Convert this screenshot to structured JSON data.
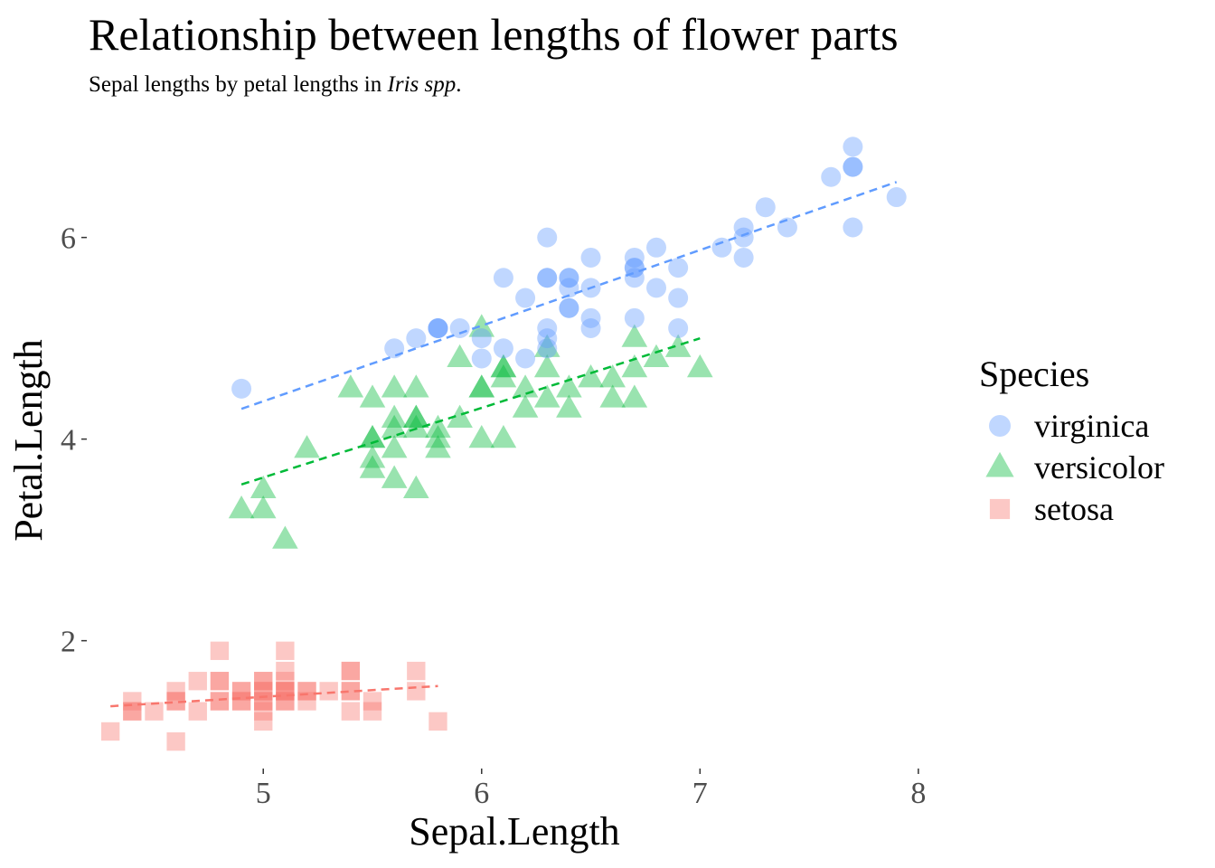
{
  "chart_data": {
    "type": "scatter",
    "title": "Relationship between lengths of flower parts",
    "subtitle_prefix": "Sepal lengths by petal lengths in ",
    "subtitle_italic": "Iris spp",
    "subtitle_suffix": ".",
    "xlabel": "Sepal.Length",
    "ylabel": "Petal.Length",
    "xlim": [
      4.2,
      8.1
    ],
    "ylim": [
      0.75,
      7.1
    ],
    "xticks": [
      5,
      6,
      7,
      8
    ],
    "yticks": [
      2,
      4,
      6
    ],
    "grid": false,
    "legend": {
      "title": "Species",
      "position": "right",
      "order": [
        "virginica",
        "versicolor",
        "setosa"
      ]
    },
    "series": [
      {
        "name": "setosa",
        "color": "#F8766D",
        "shape": "square",
        "trend": {
          "x": [
            4.3,
            5.8
          ],
          "y": [
            1.35,
            1.55
          ]
        },
        "points": [
          [
            4.3,
            1.1
          ],
          [
            4.4,
            1.4
          ],
          [
            4.4,
            1.3
          ],
          [
            4.4,
            1.3
          ],
          [
            4.5,
            1.3
          ],
          [
            4.6,
            1.4
          ],
          [
            4.6,
            1.5
          ],
          [
            4.6,
            1.0
          ],
          [
            4.6,
            1.4
          ],
          [
            4.7,
            1.3
          ],
          [
            4.7,
            1.6
          ],
          [
            4.8,
            1.6
          ],
          [
            4.8,
            1.4
          ],
          [
            4.8,
            1.4
          ],
          [
            4.8,
            1.9
          ],
          [
            4.8,
            1.6
          ],
          [
            4.9,
            1.4
          ],
          [
            4.9,
            1.5
          ],
          [
            4.9,
            1.5
          ],
          [
            4.9,
            1.4
          ],
          [
            5.0,
            1.4
          ],
          [
            5.0,
            1.5
          ],
          [
            5.0,
            1.6
          ],
          [
            5.0,
            1.2
          ],
          [
            5.0,
            1.3
          ],
          [
            5.0,
            1.6
          ],
          [
            5.0,
            1.4
          ],
          [
            5.0,
            1.5
          ],
          [
            5.1,
            1.4
          ],
          [
            5.1,
            1.5
          ],
          [
            5.1,
            1.4
          ],
          [
            5.1,
            1.5
          ],
          [
            5.1,
            1.9
          ],
          [
            5.1,
            1.7
          ],
          [
            5.1,
            1.5
          ],
          [
            5.1,
            1.6
          ],
          [
            5.2,
            1.5
          ],
          [
            5.2,
            1.4
          ],
          [
            5.2,
            1.5
          ],
          [
            5.3,
            1.5
          ],
          [
            5.4,
            1.7
          ],
          [
            5.4,
            1.5
          ],
          [
            5.4,
            1.7
          ],
          [
            5.4,
            1.3
          ],
          [
            5.4,
            1.5
          ],
          [
            5.5,
            1.4
          ],
          [
            5.5,
            1.3
          ],
          [
            5.7,
            1.7
          ],
          [
            5.7,
            1.5
          ],
          [
            5.8,
            1.2
          ]
        ]
      },
      {
        "name": "versicolor",
        "color": "#00BA38",
        "shape": "triangle",
        "trend": {
          "x": [
            4.9,
            7.0
          ],
          "y": [
            3.55,
            5.0
          ]
        },
        "points": [
          [
            4.9,
            3.3
          ],
          [
            5.0,
            3.5
          ],
          [
            5.0,
            3.3
          ],
          [
            5.1,
            3.0
          ],
          [
            5.2,
            3.9
          ],
          [
            5.4,
            4.5
          ],
          [
            5.5,
            4.0
          ],
          [
            5.5,
            3.8
          ],
          [
            5.5,
            3.7
          ],
          [
            5.5,
            4.4
          ],
          [
            5.5,
            4.0
          ],
          [
            5.6,
            4.5
          ],
          [
            5.6,
            3.6
          ],
          [
            5.6,
            3.9
          ],
          [
            5.6,
            4.2
          ],
          [
            5.6,
            4.1
          ],
          [
            5.7,
            4.5
          ],
          [
            5.7,
            3.5
          ],
          [
            5.7,
            4.2
          ],
          [
            5.7,
            4.2
          ],
          [
            5.7,
            4.1
          ],
          [
            5.8,
            4.1
          ],
          [
            5.8,
            3.9
          ],
          [
            5.8,
            4.0
          ],
          [
            5.9,
            4.8
          ],
          [
            5.9,
            4.2
          ],
          [
            6.0,
            4.0
          ],
          [
            6.0,
            4.5
          ],
          [
            6.0,
            5.1
          ],
          [
            6.0,
            4.5
          ],
          [
            6.1,
            4.7
          ],
          [
            6.1,
            4.0
          ],
          [
            6.1,
            4.7
          ],
          [
            6.1,
            4.6
          ],
          [
            6.2,
            4.5
          ],
          [
            6.2,
            4.3
          ],
          [
            6.3,
            4.7
          ],
          [
            6.3,
            4.9
          ],
          [
            6.3,
            4.4
          ],
          [
            6.4,
            4.5
          ],
          [
            6.4,
            4.3
          ],
          [
            6.5,
            4.6
          ],
          [
            6.6,
            4.6
          ],
          [
            6.6,
            4.4
          ],
          [
            6.7,
            4.4
          ],
          [
            6.7,
            5.0
          ],
          [
            6.7,
            4.7
          ],
          [
            6.8,
            4.8
          ],
          [
            6.9,
            4.9
          ],
          [
            7.0,
            4.7
          ]
        ]
      },
      {
        "name": "virginica",
        "color": "#619CFF",
        "shape": "circle",
        "trend": {
          "x": [
            4.9,
            7.9
          ],
          "y": [
            4.3,
            6.55
          ]
        },
        "points": [
          [
            4.9,
            4.5
          ],
          [
            5.6,
            4.9
          ],
          [
            5.7,
            5.0
          ],
          [
            5.8,
            5.1
          ],
          [
            5.8,
            5.1
          ],
          [
            5.8,
            5.1
          ],
          [
            5.9,
            5.1
          ],
          [
            6.0,
            5.0
          ],
          [
            6.0,
            4.8
          ],
          [
            6.1,
            5.6
          ],
          [
            6.1,
            4.9
          ],
          [
            6.2,
            5.4
          ],
          [
            6.2,
            4.8
          ],
          [
            6.3,
            6.0
          ],
          [
            6.3,
            5.1
          ],
          [
            6.3,
            5.6
          ],
          [
            6.3,
            5.0
          ],
          [
            6.3,
            4.9
          ],
          [
            6.3,
            5.6
          ],
          [
            6.4,
            5.6
          ],
          [
            6.4,
            5.3
          ],
          [
            6.4,
            5.5
          ],
          [
            6.4,
            5.6
          ],
          [
            6.4,
            5.3
          ],
          [
            6.5,
            5.8
          ],
          [
            6.5,
            5.5
          ],
          [
            6.5,
            5.1
          ],
          [
            6.5,
            5.2
          ],
          [
            6.7,
            5.8
          ],
          [
            6.7,
            5.7
          ],
          [
            6.7,
            5.6
          ],
          [
            6.7,
            5.2
          ],
          [
            6.7,
            5.7
          ],
          [
            6.8,
            5.5
          ],
          [
            6.8,
            5.9
          ],
          [
            6.9,
            5.4
          ],
          [
            6.9,
            5.7
          ],
          [
            6.9,
            5.1
          ],
          [
            7.1,
            5.9
          ],
          [
            7.2,
            6.1
          ],
          [
            7.2,
            5.8
          ],
          [
            7.2,
            6.0
          ],
          [
            7.3,
            6.3
          ],
          [
            7.4,
            6.1
          ],
          [
            7.6,
            6.6
          ],
          [
            7.7,
            6.7
          ],
          [
            7.7,
            6.9
          ],
          [
            7.7,
            6.7
          ],
          [
            7.7,
            6.1
          ],
          [
            7.9,
            6.4
          ]
        ]
      }
    ]
  }
}
